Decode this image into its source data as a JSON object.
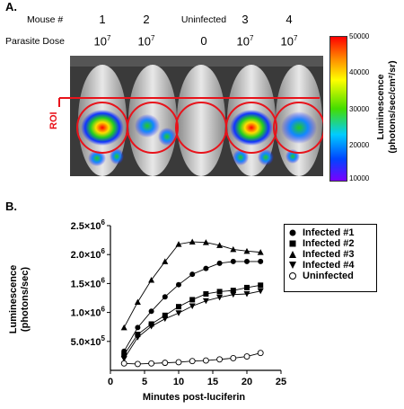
{
  "panel_a": {
    "label": "A.",
    "mouse_header": "Mouse #",
    "dose_header": "Parasite Dose",
    "roi_label": "ROI",
    "mice": [
      {
        "id": "1",
        "dose_base": "10",
        "dose_exp": "7"
      },
      {
        "id": "2",
        "dose_base": "10",
        "dose_exp": "7"
      },
      {
        "id": "Uninfected",
        "dose_base": "0",
        "dose_exp": ""
      },
      {
        "id": "3",
        "dose_base": "10",
        "dose_exp": "7"
      },
      {
        "id": "4",
        "dose_base": "10",
        "dose_exp": "7"
      }
    ],
    "colorbar": {
      "ticks": [
        "50000",
        "40000",
        "30000",
        "20000",
        "10000"
      ],
      "label_line1": "Luminescence",
      "label_line2": "(photons/sec/cm²/sr)"
    }
  },
  "panel_b": {
    "label": "B.",
    "y_label_line1": "Luminescence",
    "y_label_line2": "(photons/sec)",
    "x_label": "Minutes post-luciferin"
  },
  "chart_data": {
    "type": "line",
    "xlabel": "Minutes post-luciferin",
    "ylabel": "Luminescence (photons/sec)",
    "xlim": [
      0,
      25
    ],
    "ylim": [
      0,
      2500000
    ],
    "x_ticks": [
      "0",
      "5",
      "10",
      "15",
      "20",
      "25"
    ],
    "y_ticks": [
      {
        "base": "5.0×10",
        "exp": "5",
        "value": 500000
      },
      {
        "base": "1.0×10",
        "exp": "6",
        "value": 1000000
      },
      {
        "base": "1.5×10",
        "exp": "6",
        "value": 1500000
      },
      {
        "base": "2.0×10",
        "exp": "6",
        "value": 2000000
      },
      {
        "base": "2.5×10",
        "exp": "6",
        "value": 2500000
      }
    ],
    "x": [
      2,
      4,
      6,
      8,
      10,
      12,
      14,
      16,
      18,
      20,
      22
    ],
    "series": [
      {
        "name": "Infected #1",
        "marker": "circle-filled",
        "values": [
          330000,
          740000,
          1020000,
          1270000,
          1480000,
          1660000,
          1760000,
          1850000,
          1880000,
          1880000,
          1880000
        ]
      },
      {
        "name": "Infected #2",
        "marker": "square",
        "values": [
          270000,
          620000,
          800000,
          950000,
          1100000,
          1220000,
          1320000,
          1360000,
          1380000,
          1430000,
          1470000
        ]
      },
      {
        "name": "Infected #3",
        "marker": "triangle-up",
        "values": [
          740000,
          1180000,
          1560000,
          1880000,
          2180000,
          2220000,
          2210000,
          2160000,
          2090000,
          2060000,
          2040000
        ]
      },
      {
        "name": "Infected #4",
        "marker": "triangle-down",
        "values": [
          200000,
          570000,
          760000,
          890000,
          990000,
          1110000,
          1200000,
          1260000,
          1310000,
          1320000,
          1370000
        ]
      },
      {
        "name": "Uninfected",
        "marker": "circle-open",
        "values": [
          120000,
          110000,
          120000,
          130000,
          140000,
          160000,
          170000,
          190000,
          210000,
          240000,
          300000
        ]
      }
    ]
  }
}
